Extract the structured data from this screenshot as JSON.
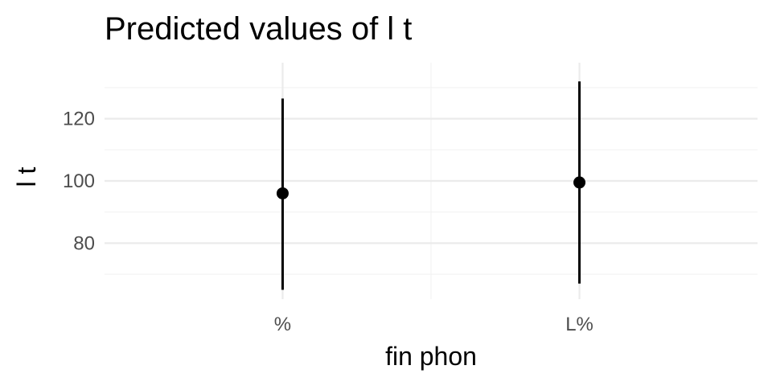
{
  "chart_data": {
    "type": "scatter",
    "title": "Predicted values of l t",
    "xlabel": "fin phon",
    "ylabel": "l t",
    "categories": [
      "%",
      "L%"
    ],
    "series": [
      {
        "points": [
          {
            "x": "%",
            "y": 96,
            "ci_low": 65,
            "ci_high": 126.5
          },
          {
            "x": "L%",
            "y": 99.5,
            "ci_low": 67,
            "ci_high": 132
          }
        ]
      }
    ],
    "ylim": [
      62,
      138
    ],
    "yticks": [
      80,
      100,
      120
    ],
    "grid": true,
    "legend": "none",
    "colors": {
      "point": "#000000",
      "grid_major": "#ebebeb",
      "grid_minor": "#f2f2f2",
      "tick_text": "#4d4d4d"
    }
  }
}
